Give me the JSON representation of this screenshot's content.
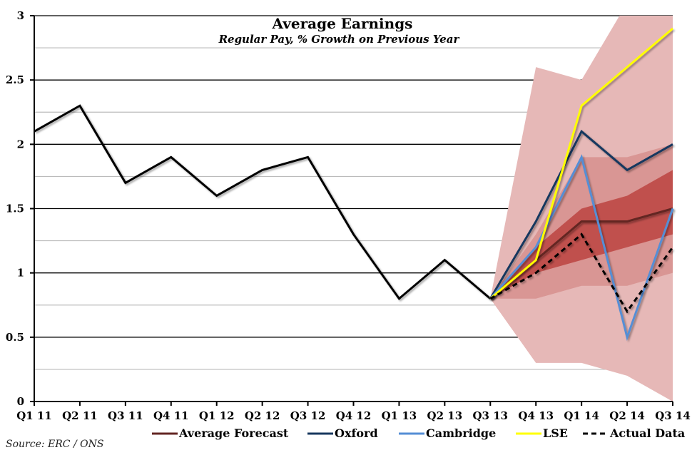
{
  "chart_data": {
    "type": "line",
    "title": "Average Earnings",
    "subtitle": "Regular Pay, % Growth on Previous Year",
    "xlabel": "",
    "ylabel": "",
    "source": "Source: ERC / ONS",
    "categories": [
      "Q1 11",
      "Q2 11",
      "Q3 11",
      "Q4 11",
      "Q1 12",
      "Q2 12",
      "Q3 12",
      "Q4 12",
      "Q1 13",
      "Q2 13",
      "Q3 13",
      "Q4 13",
      "Q1 14",
      "Q2 14",
      "Q3 14"
    ],
    "ylim": [
      0,
      3
    ],
    "yticks": [
      0,
      0.5,
      1,
      1.5,
      2,
      2.5,
      3
    ],
    "ytick_labels": [
      "0",
      "0.5",
      "1",
      "1.5",
      "2",
      "2.5",
      "3"
    ],
    "grid": true,
    "legend_position": "bottom",
    "fan_bands": [
      {
        "name": "outer-band",
        "color": "#e6b8b7",
        "start_index": 10,
        "upper": [
          0.8,
          2.6,
          2.5,
          3.1,
          3.1
        ],
        "lower": [
          0.8,
          0.3,
          0.3,
          0.2,
          0
        ]
      },
      {
        "name": "middle-band",
        "color": "#d99694",
        "start_index": 10,
        "upper": [
          0.8,
          1.3,
          1.9,
          1.9,
          2.0
        ],
        "lower": [
          0.8,
          0.8,
          0.9,
          0.9,
          1.0
        ]
      },
      {
        "name": "inner-band",
        "color": "#c0504d",
        "start_index": 10,
        "upper": [
          0.8,
          1.2,
          1.5,
          1.6,
          1.8
        ],
        "lower": [
          0.8,
          1.0,
          1.1,
          1.2,
          1.3
        ]
      }
    ],
    "series": [
      {
        "name": "Historical",
        "color": "#000000",
        "dashed": false,
        "start_index": 0,
        "values": [
          2.1,
          2.3,
          1.7,
          1.9,
          1.6,
          1.8,
          1.9,
          1.3,
          0.8,
          1.1,
          0.8
        ],
        "in_legend": false
      },
      {
        "name": "Average Forecast",
        "color": "#632523",
        "dashed": false,
        "start_index": 10,
        "values": [
          0.8,
          1.1,
          1.4,
          1.4,
          1.5
        ],
        "in_legend": true
      },
      {
        "name": "Oxford",
        "color": "#17375e",
        "dashed": false,
        "start_index": 10,
        "values": [
          0.8,
          1.4,
          2.1,
          1.8,
          2.0
        ],
        "in_legend": true
      },
      {
        "name": "Cambridge",
        "color": "#558ed5",
        "dashed": false,
        "start_index": 10,
        "values": [
          0.8,
          1.2,
          1.9,
          0.5,
          1.5
        ],
        "in_legend": true
      },
      {
        "name": "LSE",
        "color": "#ffff00",
        "dashed": false,
        "start_index": 10,
        "values": [
          0.8,
          1.1,
          2.3,
          2.6,
          2.9
        ],
        "in_legend": true
      },
      {
        "name": "Actual Data",
        "color": "#000000",
        "dashed": true,
        "start_index": 10,
        "values": [
          0.8,
          1.0,
          1.3,
          0.7,
          1.2
        ],
        "in_legend": true
      }
    ]
  }
}
